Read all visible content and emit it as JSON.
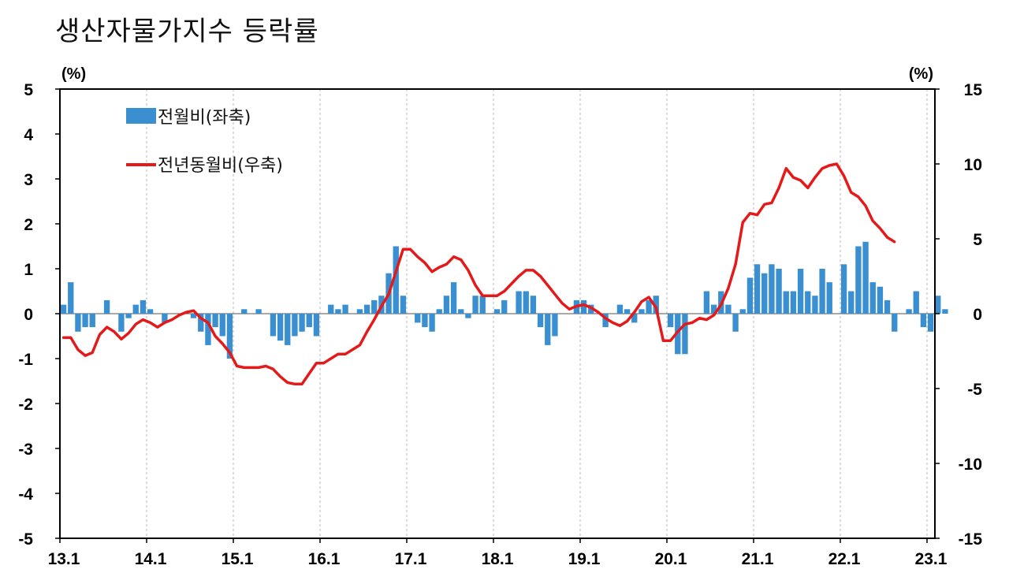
{
  "title": "생산자물가지수 등락률",
  "chart_data": {
    "type": "bar+line",
    "title": "생산자물가지수 등락률",
    "left_unit": "(%)",
    "right_unit": "(%)",
    "left_ylim": [
      -5,
      5
    ],
    "left_yticks": [
      "5",
      "4",
      "3",
      "2",
      "1",
      "0",
      "-1",
      "-2",
      "-3",
      "-4",
      "-5"
    ],
    "right_ylim": [
      -15,
      15
    ],
    "right_yticks": [
      "15",
      "10",
      "5",
      "0",
      "-5",
      "-10",
      "-15"
    ],
    "x_tick_labels": [
      "13.1",
      "14.1",
      "15.1",
      "16.1",
      "17.1",
      "18.1",
      "19.1",
      "20.1",
      "21.1",
      "22.1",
      "23.1"
    ],
    "legend": [
      {
        "name": "전월비(좌축)",
        "color": "#3a8fd1",
        "kind": "bar"
      },
      {
        "name": "전년동월비(우축)",
        "color": "#e41a1a",
        "kind": "line"
      }
    ],
    "series": [
      {
        "name": "전월비(좌축)",
        "axis": "left",
        "start": "2013.1",
        "values": [
          0.2,
          0.7,
          -0.4,
          -0.3,
          -0.3,
          0.0,
          0.3,
          0.0,
          -0.4,
          -0.1,
          0.2,
          0.3,
          0.1,
          0.0,
          -0.2,
          0.0,
          0.0,
          0.0,
          -0.1,
          -0.4,
          -0.7,
          -0.3,
          -0.5,
          -1.0,
          0.0,
          0.1,
          0.0,
          0.1,
          0.0,
          -0.5,
          -0.6,
          -0.7,
          -0.5,
          -0.4,
          -0.3,
          -0.5,
          0.0,
          0.2,
          0.1,
          0.2,
          0.0,
          0.1,
          0.2,
          0.3,
          0.4,
          0.9,
          1.5,
          0.4,
          0.0,
          -0.2,
          -0.3,
          -0.4,
          0.1,
          0.4,
          0.7,
          0.1,
          -0.1,
          0.4,
          0.4,
          0.0,
          0.1,
          0.3,
          0.0,
          0.5,
          0.5,
          0.4,
          -0.3,
          -0.7,
          -0.5,
          0.0,
          0.0,
          0.3,
          0.3,
          0.2,
          0.0,
          -0.3,
          0.0,
          0.2,
          0.1,
          -0.2,
          0.1,
          0.3,
          0.4,
          0.0,
          -0.3,
          -0.9,
          -0.9,
          0.0,
          0.0,
          0.5,
          0.2,
          0.5,
          0.2,
          -0.4,
          0.1,
          0.8,
          1.1,
          0.9,
          1.1,
          1.0,
          0.5,
          0.5,
          1.0,
          0.5,
          0.4,
          1.0,
          0.7,
          0.0,
          1.1,
          0.5,
          1.5,
          1.6,
          0.7,
          0.6,
          0.3,
          -0.4,
          0.0,
          0.1,
          0.5,
          -0.3,
          -0.4,
          0.4,
          0.1
        ]
      },
      {
        "name": "전년동월비(우축)",
        "axis": "right",
        "start": "2013.1",
        "values": [
          -1.6,
          -1.6,
          -2.4,
          -2.8,
          -2.6,
          -1.4,
          -0.9,
          -1.2,
          -1.7,
          -1.3,
          -0.7,
          -0.4,
          -0.6,
          -0.9,
          -0.6,
          -0.4,
          -0.1,
          0.1,
          0.2,
          -0.3,
          -0.6,
          -1.5,
          -2.0,
          -2.6,
          -3.5,
          -3.6,
          -3.6,
          -3.6,
          -3.5,
          -3.7,
          -4.2,
          -4.6,
          -4.7,
          -4.7,
          -4.0,
          -3.3,
          -3.3,
          -3.0,
          -2.7,
          -2.7,
          -2.4,
          -2.1,
          -1.2,
          -0.4,
          0.5,
          1.3,
          2.8,
          4.3,
          4.3,
          3.8,
          3.4,
          2.8,
          3.1,
          3.3,
          3.8,
          3.6,
          2.9,
          1.9,
          1.2,
          1.2,
          1.2,
          1.5,
          2.0,
          2.5,
          2.9,
          2.9,
          2.5,
          1.9,
          1.3,
          0.7,
          0.3,
          0.5,
          0.6,
          0.4,
          0.1,
          -0.3,
          -0.6,
          -0.8,
          -0.5,
          0.1,
          0.8,
          1.1,
          0.4,
          -1.8,
          -1.8,
          -1.2,
          -0.7,
          -0.6,
          -0.3,
          -0.4,
          -0.1,
          0.6,
          1.7,
          3.3,
          6.1,
          6.7,
          6.6,
          7.3,
          7.4,
          8.4,
          9.7,
          9.1,
          8.9,
          8.4,
          9.1,
          9.7,
          9.9,
          10.0,
          9.2,
          8.1,
          7.8,
          7.2,
          6.2,
          5.7,
          5.1,
          4.8
        ]
      }
    ],
    "grid": "vertical-dashed"
  }
}
